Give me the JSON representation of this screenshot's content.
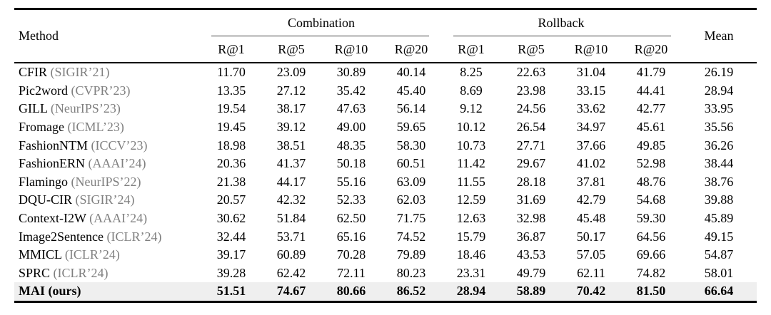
{
  "table": {
    "header": {
      "method": "Method",
      "mean": "Mean",
      "groups": [
        {
          "label": "Combination",
          "sub": [
            "R@1",
            "R@5",
            "R@10",
            "R@20"
          ]
        },
        {
          "label": "Rollback",
          "sub": [
            "R@1",
            "R@5",
            "R@10",
            "R@20"
          ]
        }
      ]
    },
    "rows": [
      {
        "method": "CFIR",
        "venue": "(SIGIR’21)",
        "combination": [
          "11.70",
          "23.09",
          "30.89",
          "40.14"
        ],
        "rollback": [
          "8.25",
          "22.63",
          "31.04",
          "41.79"
        ],
        "mean": "26.19",
        "highlight": false
      },
      {
        "method": "Pic2word",
        "venue": "(CVPR’23)",
        "combination": [
          "13.35",
          "27.12",
          "35.42",
          "45.40"
        ],
        "rollback": [
          "8.69",
          "23.98",
          "33.15",
          "44.41"
        ],
        "mean": "28.94",
        "highlight": false
      },
      {
        "method": "GILL",
        "venue": "(NeurIPS’23)",
        "combination": [
          "19.54",
          "38.17",
          "47.63",
          "56.14"
        ],
        "rollback": [
          "9.12",
          "24.56",
          "33.62",
          "42.77"
        ],
        "mean": "33.95",
        "highlight": false
      },
      {
        "method": "Fromage",
        "venue": "(ICML’23)",
        "combination": [
          "19.45",
          "39.12",
          "49.00",
          "59.65"
        ],
        "rollback": [
          "10.12",
          "26.54",
          "34.97",
          "45.61"
        ],
        "mean": "35.56",
        "highlight": false
      },
      {
        "method": "FashionNTM",
        "venue": "(ICCV’23)",
        "combination": [
          "18.98",
          "38.51",
          "48.35",
          "58.30"
        ],
        "rollback": [
          "10.73",
          "27.71",
          "37.66",
          "49.85"
        ],
        "mean": "36.26",
        "highlight": false
      },
      {
        "method": "FashionERN",
        "venue": "(AAAI’24)",
        "combination": [
          "20.36",
          "41.37",
          "50.18",
          "60.51"
        ],
        "rollback": [
          "11.42",
          "29.67",
          "41.02",
          "52.98"
        ],
        "mean": "38.44",
        "highlight": false
      },
      {
        "method": "Flamingo",
        "venue": "(NeurIPS’22)",
        "combination": [
          "21.38",
          "44.17",
          "55.16",
          "63.09"
        ],
        "rollback": [
          "11.55",
          "28.18",
          "37.81",
          "48.76"
        ],
        "mean": "38.76",
        "highlight": false
      },
      {
        "method": "DQU-CIR",
        "venue": "(SIGIR’24)",
        "combination": [
          "20.57",
          "42.32",
          "52.33",
          "62.03"
        ],
        "rollback": [
          "12.59",
          "31.69",
          "42.79",
          "54.68"
        ],
        "mean": "39.88",
        "highlight": false
      },
      {
        "method": "Context-I2W",
        "venue": "(AAAI’24)",
        "combination": [
          "30.62",
          "51.84",
          "62.50",
          "71.75"
        ],
        "rollback": [
          "12.63",
          "32.98",
          "45.48",
          "59.30"
        ],
        "mean": "45.89",
        "highlight": false
      },
      {
        "method": "Image2Sentence",
        "venue": "(ICLR’24)",
        "combination": [
          "32.44",
          "53.71",
          "65.16",
          "74.52"
        ],
        "rollback": [
          "15.79",
          "36.87",
          "50.17",
          "64.56"
        ],
        "mean": "49.15",
        "highlight": false
      },
      {
        "method": "MMICL",
        "venue": "(ICLR’24)",
        "combination": [
          "39.17",
          "60.89",
          "70.28",
          "79.89"
        ],
        "rollback": [
          "18.46",
          "43.53",
          "57.05",
          "69.66"
        ],
        "mean": "54.87",
        "highlight": false
      },
      {
        "method": "SPRC",
        "venue": "(ICLR’24)",
        "combination": [
          "39.28",
          "62.42",
          "72.11",
          "80.23"
        ],
        "rollback": [
          "23.31",
          "49.79",
          "62.11",
          "74.82"
        ],
        "mean": "58.01",
        "highlight": false
      },
      {
        "method": "MAI",
        "venue": "(ours)",
        "combination": [
          "51.51",
          "74.67",
          "80.66",
          "86.52"
        ],
        "rollback": [
          "28.94",
          "58.89",
          "70.42",
          "81.50"
        ],
        "mean": "66.64",
        "highlight": true
      }
    ],
    "colors": {
      "venue_text": "#7f7f7f",
      "highlight_row_bg": "#efefef",
      "rule": "#000000"
    }
  }
}
